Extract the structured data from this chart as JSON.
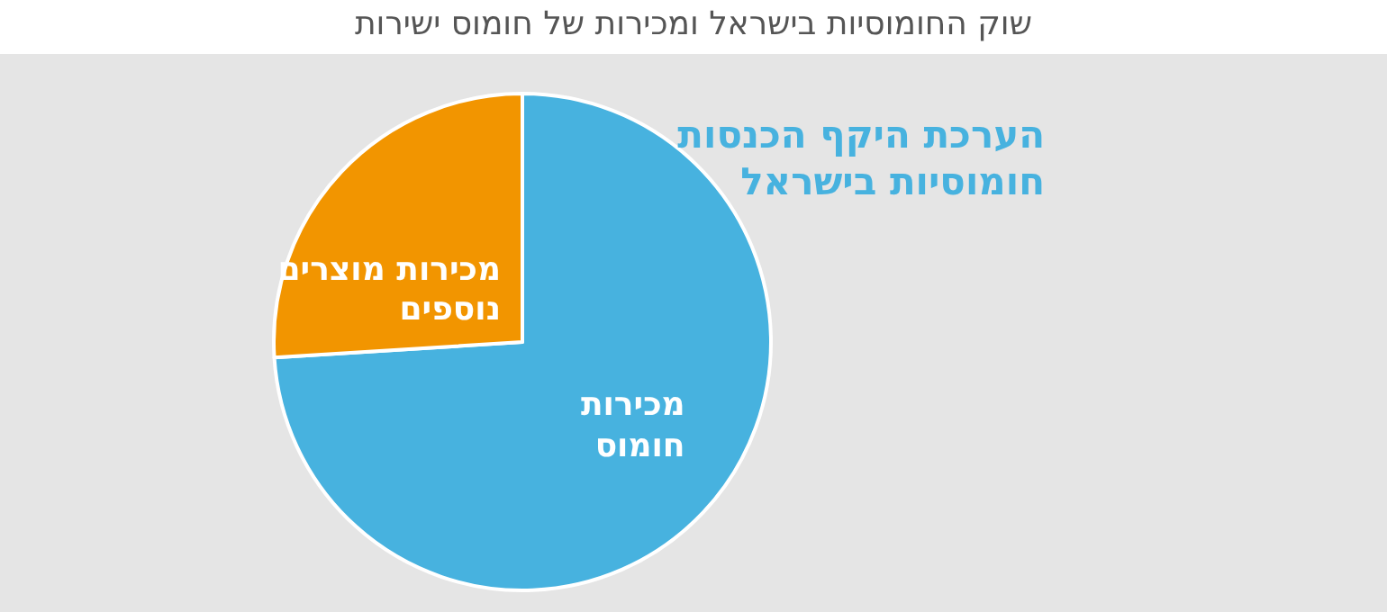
{
  "chart_data": {
    "type": "pie",
    "title": "שוק החומוסיות בישראל ומכירות של חומוס ישירות",
    "categories": [
      "מכירות חומוס",
      "מכירות מוצרים נוספים"
    ],
    "values": [
      74,
      26
    ],
    "colors": [
      "#47b2df",
      "#f29500"
    ],
    "annotations": [
      "הערכת היקף הכנסות חומוסיות בישראל"
    ]
  }
}
